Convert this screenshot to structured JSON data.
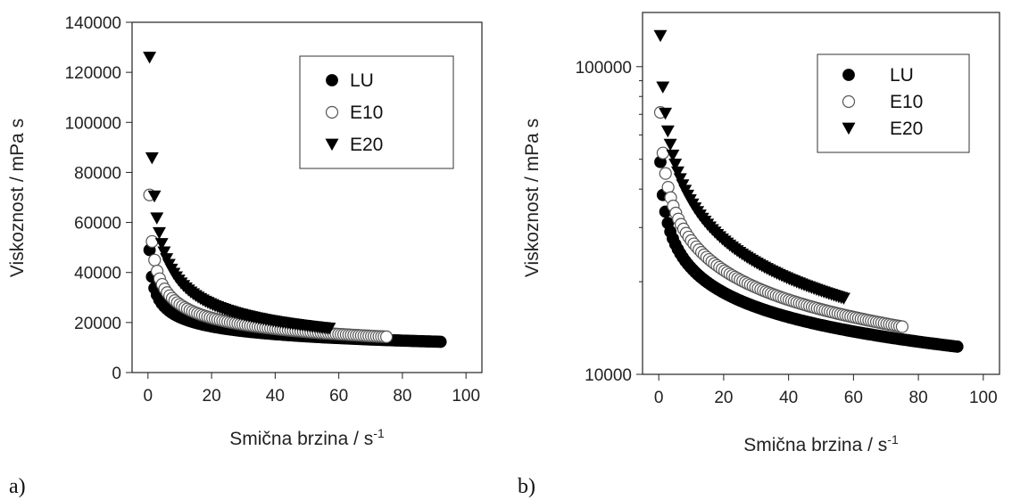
{
  "chart_data": [
    {
      "type": "scatter",
      "panel_label": "a)",
      "xlabel": "Smična brzina / s",
      "xlabel_sup": "-1",
      "ylabel": "Viskoznost / mPa s",
      "xlim": [
        -5,
        105
      ],
      "ylim": [
        0,
        140000
      ],
      "yscale": "linear",
      "xticks": [
        0,
        20,
        40,
        60,
        80,
        100
      ],
      "yticks": [
        0,
        20000,
        40000,
        60000,
        80000,
        100000,
        120000,
        140000
      ],
      "legend_position": "top-right",
      "series": [
        {
          "name": "LU",
          "marker": "filled-circle",
          "color": "#000000",
          "model": {
            "a": 49000,
            "b": -0.265,
            "xmin": 0.5,
            "xmax": 92,
            "n": 120
          }
        },
        {
          "name": "E10",
          "marker": "open-circle",
          "color": "#ffffff",
          "model": {
            "a": 71000,
            "b": -0.32,
            "xmin": 0.5,
            "xmax": 75,
            "n": 95
          }
        },
        {
          "name": "E20",
          "marker": "filled-triangle-down",
          "color": "#000000",
          "model": {
            "a": 126000,
            "b": -0.415,
            "xmin": 0.5,
            "xmax": 57,
            "n": 75
          }
        }
      ]
    },
    {
      "type": "scatter",
      "panel_label": "b)",
      "xlabel": "Smična brzina / s",
      "xlabel_sup": "-1",
      "ylabel": "Viskoznost / mPa s",
      "xlim": [
        -5,
        105
      ],
      "ylim": [
        10000,
        150000
      ],
      "yscale": "log",
      "xticks": [
        0,
        20,
        40,
        60,
        80,
        100
      ],
      "yticks": [
        10000,
        100000
      ],
      "legend_position": "top-right",
      "series": [
        {
          "name": "LU",
          "marker": "filled-circle",
          "color": "#000000",
          "model": {
            "a": 49000,
            "b": -0.265,
            "xmin": 0.5,
            "xmax": 92,
            "n": 120
          }
        },
        {
          "name": "E10",
          "marker": "open-circle",
          "color": "#ffffff",
          "model": {
            "a": 71000,
            "b": -0.32,
            "xmin": 0.5,
            "xmax": 75,
            "n": 95
          }
        },
        {
          "name": "E20",
          "marker": "filled-triangle-down",
          "color": "#000000",
          "model": {
            "a": 126000,
            "b": -0.415,
            "xmin": 0.5,
            "xmax": 57,
            "n": 75
          }
        }
      ]
    }
  ]
}
